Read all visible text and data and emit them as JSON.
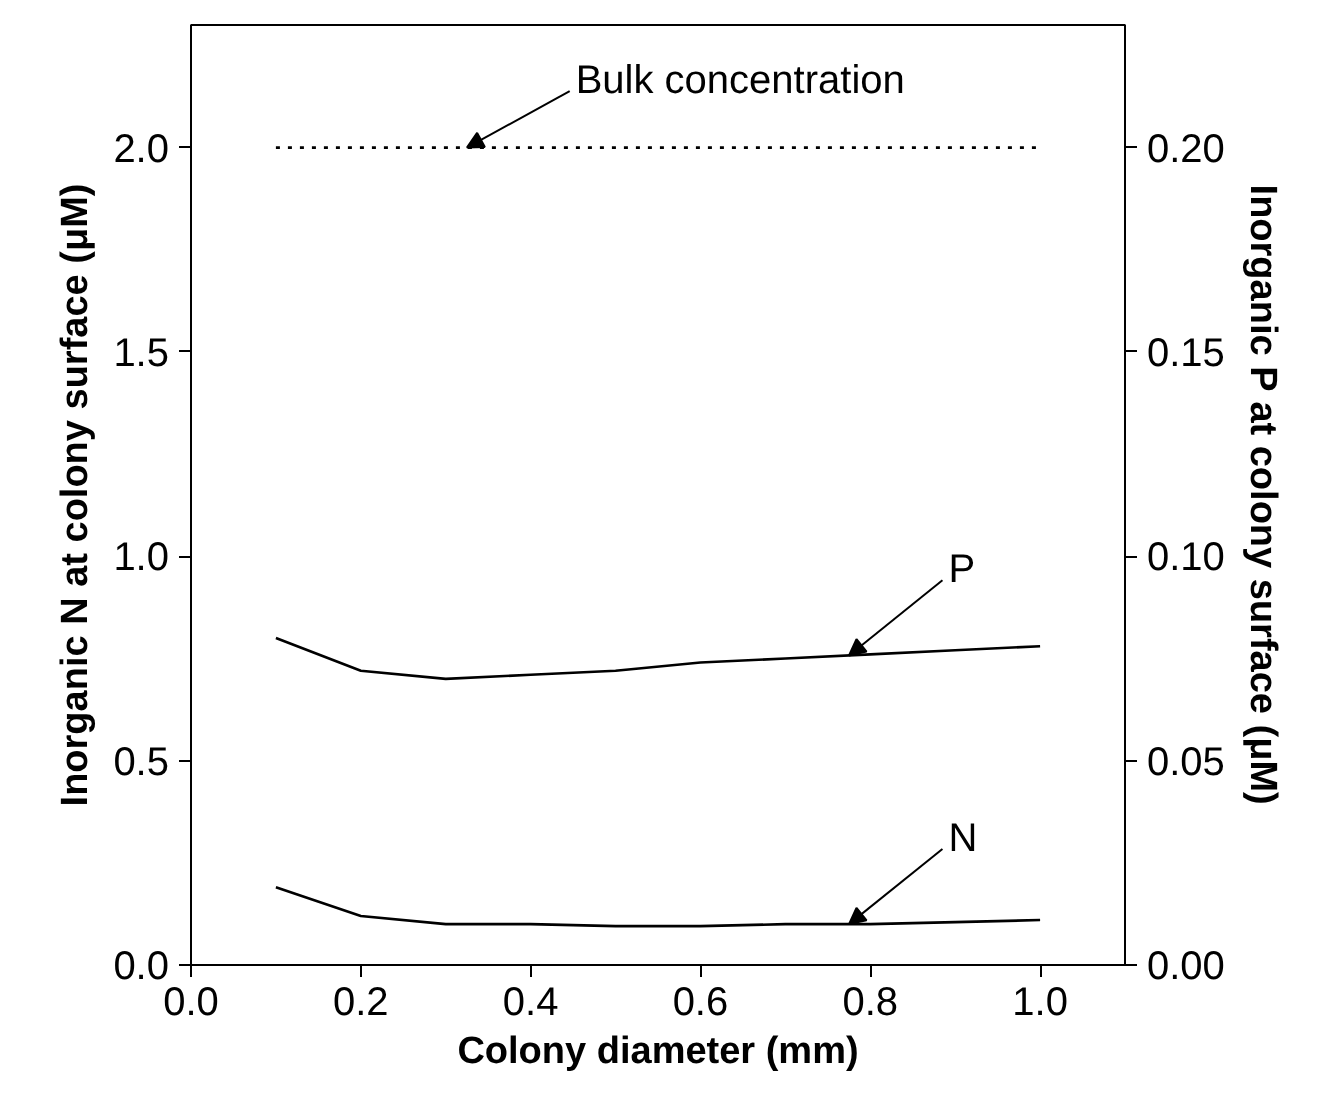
{
  "chart_data": {
    "type": "line",
    "xlabel": "Colony diameter (mm)",
    "ylabel": "Inorganic N at colony surface (μM)",
    "y2label": "Inorganic P at colony surface (μM)",
    "x": [
      0.1,
      0.2,
      0.3,
      0.4,
      0.5,
      0.6,
      0.7,
      0.8,
      0.9,
      1.0
    ],
    "series": [
      {
        "name": "Bulk concentration",
        "color": "#000000",
        "x": [
          0.1,
          1.0
        ],
        "values": [
          2.0,
          2.0
        ],
        "line_style": "dotted"
      },
      {
        "name": "P",
        "color": "#000000",
        "axis": "y2",
        "values": [
          0.08,
          0.072,
          0.07,
          0.071,
          0.072,
          0.074,
          0.075,
          0.076,
          0.077,
          0.078
        ]
      },
      {
        "name": "N",
        "color": "#000000",
        "values": [
          0.19,
          0.12,
          0.1,
          0.1,
          0.095,
          0.095,
          0.1,
          0.1,
          0.105,
          0.11
        ]
      }
    ],
    "xlim": [
      0,
      1.1
    ],
    "xticks": [
      {
        "value": 0,
        "label": "0.0"
      },
      0.2,
      0.4,
      0.6,
      0.8,
      {
        "value": 1,
        "label": "1.0"
      }
    ],
    "ylim": [
      0,
      2.3
    ],
    "yticks": [
      {
        "value": 0,
        "label": "0.0"
      },
      0.5,
      {
        "value": 1,
        "label": "1.0"
      },
      1.5,
      {
        "value": 2,
        "label": "2.0"
      }
    ],
    "y2lim": [
      0,
      0.23
    ],
    "y2ticks": [
      {
        "value": 0,
        "label": "0.00"
      },
      0.05,
      {
        "value": 0.1,
        "label": "0.10"
      },
      0.15,
      {
        "value": 0.2,
        "label": "0.20"
      }
    ],
    "grid": false,
    "line_style": "solid",
    "marker": "none"
  }
}
